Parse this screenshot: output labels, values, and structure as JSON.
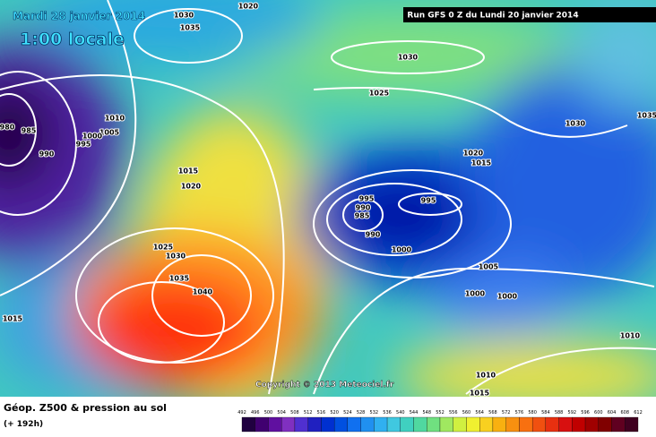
{
  "header": {
    "date": "Mardi 28 janvier 2014",
    "time": "1:00 locale",
    "run": "Run GFS 0 Z du Lundi 20 janvier 2014"
  },
  "copyright": "Copyright © 2013 Meteociel.fr",
  "legend": {
    "title": "Géop. Z500 & pression au sol",
    "lead": "(+ 192h)",
    "scale": [
      "492",
      "496",
      "500",
      "504",
      "508",
      "512",
      "516",
      "520",
      "524",
      "528",
      "532",
      "536",
      "540",
      "544",
      "548",
      "552",
      "556",
      "560",
      "564",
      "568",
      "572",
      "576",
      "580",
      "584",
      "588",
      "592",
      "596",
      "600",
      "604",
      "608",
      "612"
    ]
  },
  "isobar_labels": [
    "1020",
    "1030",
    "1035",
    "1030",
    "1025",
    "1010",
    "1005",
    "980",
    "985",
    "990",
    "995",
    "1000",
    "1015",
    "1020",
    "1025",
    "1030",
    "1035",
    "1040",
    "1015",
    "995",
    "990",
    "985",
    "995",
    "990",
    "1000",
    "1005",
    "1000",
    "1000",
    "1020",
    "1015",
    "1030",
    "1035",
    "1010",
    "1010",
    "1015"
  ]
}
